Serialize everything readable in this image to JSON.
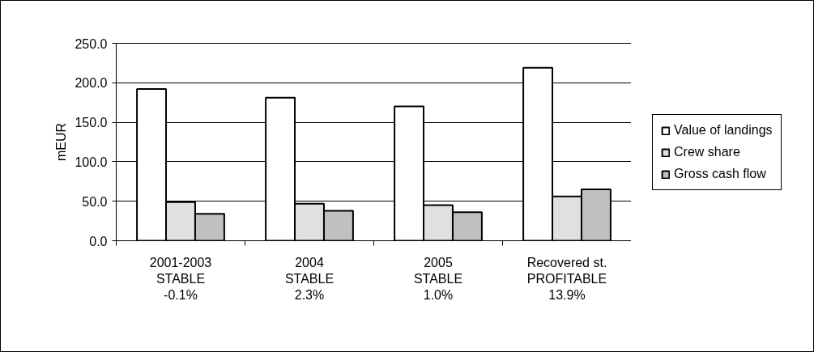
{
  "chart_data": {
    "type": "bar",
    "ylabel": "mEUR",
    "categories": [
      "2001-2003\nSTABLE\n-0.1%",
      "2004\nSTABLE\n2.3%",
      "2005\nSTABLE\n1.0%",
      "Recovered st.\nPROFITABLE\n13.9%"
    ],
    "series": [
      {
        "name": "Value of landings",
        "color": "#ffffff",
        "values": [
          192,
          181,
          170,
          219
        ]
      },
      {
        "name": "Crew share",
        "color": "#e0e0e0",
        "values": [
          49,
          47,
          45,
          56
        ]
      },
      {
        "name": "Gross cash flow",
        "color": "#c0c0c0",
        "values": [
          34,
          38,
          36,
          65
        ]
      }
    ],
    "ylim": [
      0,
      250
    ],
    "yticks": [
      {
        "value": 0,
        "label": "0.0"
      },
      {
        "value": 50,
        "label": "50.0"
      },
      {
        "value": 100,
        "label": "100.0"
      },
      {
        "value": 150,
        "label": "150.0"
      },
      {
        "value": 200,
        "label": "200.0"
      },
      {
        "value": 250,
        "label": "250.0"
      }
    ],
    "grid": "y",
    "legend": "right"
  }
}
